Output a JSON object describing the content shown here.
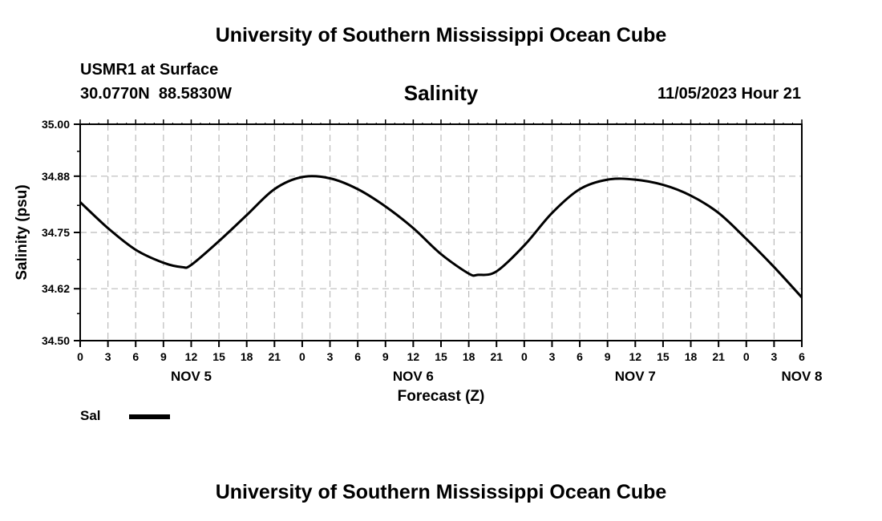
{
  "header": {
    "title": "University of Southern Mississippi Ocean Cube",
    "station": "USMR1 at Surface",
    "coordinates": "30.0770N  88.5830W",
    "datetime": "11/05/2023 Hour 21"
  },
  "footer": {
    "title": "University of Southern Mississippi Ocean Cube"
  },
  "legend": {
    "label": "Sal"
  },
  "chart_data": {
    "type": "line",
    "title": "Salinity",
    "xlabel": "Forecast (Z)",
    "ylabel": "Salinity (psu)",
    "xlim": [
      0,
      78
    ],
    "ylim": [
      34.5,
      35.0
    ],
    "y_ticks": [
      "35.00",
      "34.88",
      "34.75",
      "34.62",
      "34.50"
    ],
    "x_tick_labels": [
      "0",
      "3",
      "6",
      "9",
      "12",
      "15",
      "18",
      "21",
      "0",
      "3",
      "6",
      "9",
      "12",
      "15",
      "18",
      "21",
      "0",
      "3",
      "6",
      "9",
      "12",
      "15",
      "18",
      "21",
      "0",
      "3",
      "6"
    ],
    "day_labels": [
      {
        "label": "NOV 5",
        "hour": 12
      },
      {
        "label": "NOV 6",
        "hour": 36
      },
      {
        "label": "NOV 7",
        "hour": 60
      },
      {
        "label": "NOV 8",
        "hour": 78
      }
    ],
    "grid": true,
    "series": [
      {
        "name": "Sal",
        "color": "#000000",
        "x": [
          0,
          3,
          6,
          9,
          11,
          12,
          15,
          18,
          21,
          24,
          27,
          30,
          33,
          36,
          39,
          42,
          43,
          45,
          48,
          51,
          54,
          57,
          60,
          63,
          66,
          69,
          72,
          75,
          78
        ],
        "values": [
          34.82,
          34.76,
          34.71,
          34.68,
          34.67,
          34.675,
          34.73,
          34.79,
          34.85,
          34.878,
          34.875,
          34.85,
          34.81,
          34.76,
          34.7,
          34.655,
          34.652,
          34.66,
          34.72,
          34.795,
          34.85,
          34.872,
          34.872,
          34.86,
          34.835,
          34.795,
          34.735,
          34.67,
          34.6
        ]
      }
    ]
  }
}
